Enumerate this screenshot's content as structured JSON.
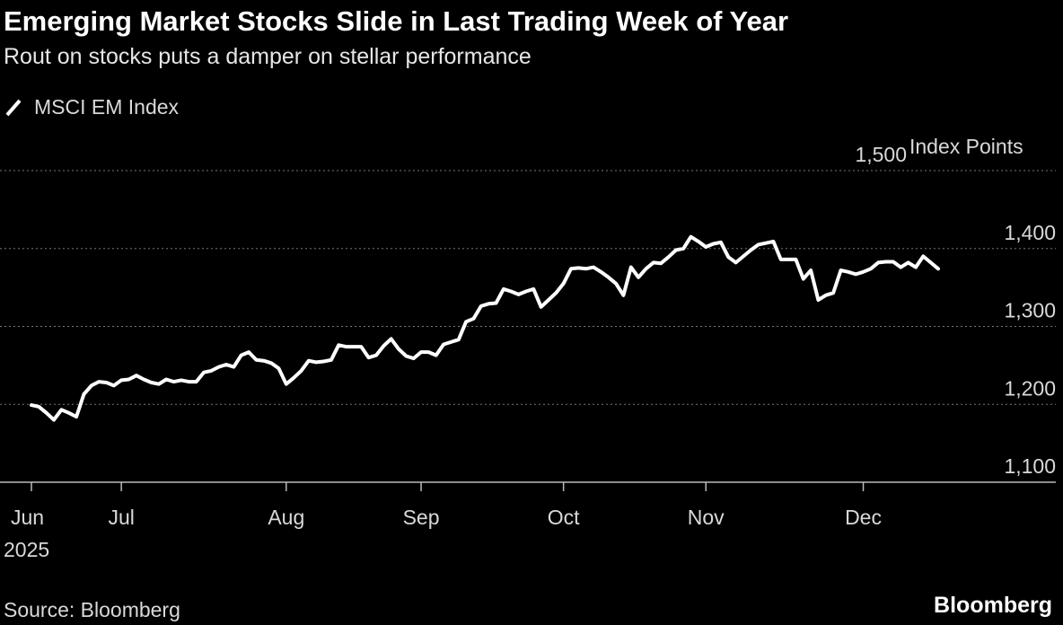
{
  "chart_data": {
    "type": "line",
    "title": "Emerging Market Stocks Slide in Last Trading Week of Year",
    "subtitle": "Rout on stocks puts a damper on stellar performance",
    "ylabel": "Index Points",
    "source": "Source: Bloomberg",
    "brand": "Bloomberg",
    "x_year_label": "2025",
    "categories": [
      null,
      null,
      null,
      null,
      null,
      null,
      null,
      null,
      null,
      null,
      null,
      null,
      null,
      null,
      null,
      null,
      null,
      null,
      null,
      null,
      null,
      null,
      null,
      null,
      null,
      null,
      null,
      null,
      null,
      null,
      null,
      null,
      null,
      null,
      null,
      null,
      null,
      null,
      null,
      null,
      null,
      null,
      null,
      null,
      null,
      null,
      null,
      null,
      null,
      null,
      null,
      null,
      null,
      null,
      null,
      null,
      null,
      null,
      null,
      null,
      null,
      null,
      null,
      null,
      null,
      null,
      null,
      null,
      null,
      null,
      null,
      null,
      null,
      null,
      null,
      null,
      null,
      null,
      null,
      null,
      null,
      null,
      null,
      null,
      null,
      null,
      null,
      null,
      null,
      null,
      null,
      null,
      null,
      null,
      null,
      null,
      null,
      null,
      null,
      null,
      null,
      null,
      null,
      null,
      null,
      null,
      null,
      null,
      null,
      null,
      null,
      null,
      null,
      null,
      null,
      null,
      null,
      null,
      null,
      null,
      null,
      null
    ],
    "series": [
      {
        "name": "MSCI EM Index",
        "color": "#ffffff",
        "values": [
          1199,
          1197,
          1189,
          1180,
          1193,
          1189,
          1184,
          1213,
          1224,
          1229,
          1228,
          1224,
          1231,
          1232,
          1237,
          1232,
          1228,
          1226,
          1232,
          1229,
          1231,
          1229,
          1229,
          1241,
          1243,
          1248,
          1251,
          1248,
          1263,
          1267,
          1257,
          1256,
          1253,
          1246,
          1226,
          1234,
          1243,
          1256,
          1254,
          1255,
          1257,
          1276,
          1274,
          1274,
          1274,
          1260,
          1263,
          1275,
          1284,
          1271,
          1262,
          1259,
          1267,
          1267,
          1263,
          1277,
          1280,
          1283,
          1306,
          1310,
          1326,
          1329,
          1330,
          1348,
          1345,
          1341,
          1345,
          1348,
          1325,
          1334,
          1343,
          1355,
          1374,
          1375,
          1374,
          1376,
          1370,
          1363,
          1355,
          1340,
          1376,
          1363,
          1374,
          1382,
          1381,
          1389,
          1398,
          1400,
          1415,
          1409,
          1402,
          1406,
          1408,
          1389,
          1382,
          1390,
          1398,
          1405,
          1407,
          1409,
          1386,
          1386,
          1386,
          1361,
          1372,
          1334,
          1340,
          1343,
          1372,
          1370,
          1367,
          1370,
          1374,
          1382,
          1383,
          1383,
          1376,
          1382,
          1376,
          1390,
          1382,
          1374
        ]
      }
    ],
    "xticks": [
      {
        "value": 0,
        "label": "Jun"
      },
      {
        "value": 12,
        "label": "Jul"
      },
      {
        "value": 34,
        "label": "Aug"
      },
      {
        "value": 52,
        "label": "Sep"
      },
      {
        "value": 71,
        "label": "Oct"
      },
      {
        "value": 90,
        "label": "Nov"
      },
      {
        "value": 111,
        "label": "Dec"
      }
    ],
    "ylim": [
      1100,
      1500
    ],
    "yticks": [
      {
        "value": 1100,
        "label": "1,100"
      },
      {
        "value": 1200,
        "label": "1,200"
      },
      {
        "value": 1300,
        "label": "1,300"
      },
      {
        "value": 1400,
        "label": "1,400"
      },
      {
        "value": 1500,
        "label": "1,500"
      }
    ],
    "grid": true
  }
}
